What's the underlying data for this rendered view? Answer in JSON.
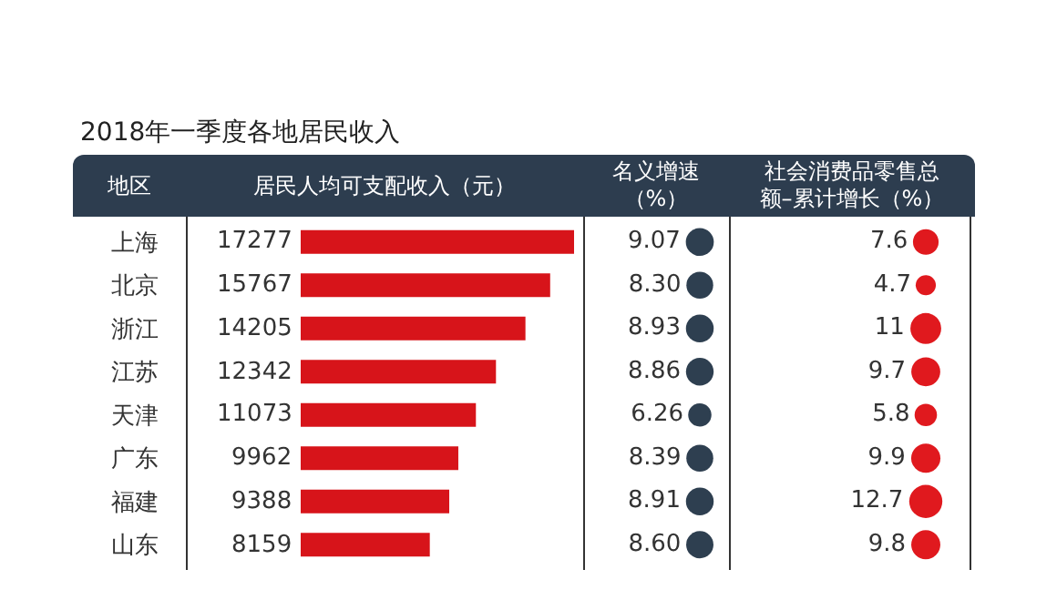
{
  "chart_data": [
    {
      "type": "bar",
      "title": "2018年一季度各地居民收入",
      "ylabel": "地区",
      "xlabel": "居民人均可支配收入（元）",
      "orientation": "horizontal",
      "categories": [
        "上海",
        "北京",
        "浙江",
        "江苏",
        "天津",
        "广东",
        "福建",
        "山东"
      ],
      "values": [
        17277,
        15767,
        14205,
        12342,
        11073,
        9962,
        9388,
        8159
      ],
      "color": "#d7141a",
      "data_labels": true
    },
    {
      "type": "other",
      "xlabel": "名义增速（%）",
      "values": [
        9.07,
        8.3,
        8.93,
        8.86,
        6.26,
        8.39,
        8.91,
        8.6
      ],
      "value_labels": [
        "9.07",
        "8.30",
        "8.93",
        "8.86",
        "6.26",
        "8.39",
        "8.91",
        "8.60"
      ],
      "color": "#2e3f50"
    },
    {
      "type": "other",
      "xlabel": "社会消费品零售总额–累计增长（%）",
      "values": [
        7.6,
        4.7,
        11,
        9.7,
        5.8,
        9.9,
        12.7,
        9.8
      ],
      "data_labels": true,
      "color": "#e0191e"
    }
  ]
}
